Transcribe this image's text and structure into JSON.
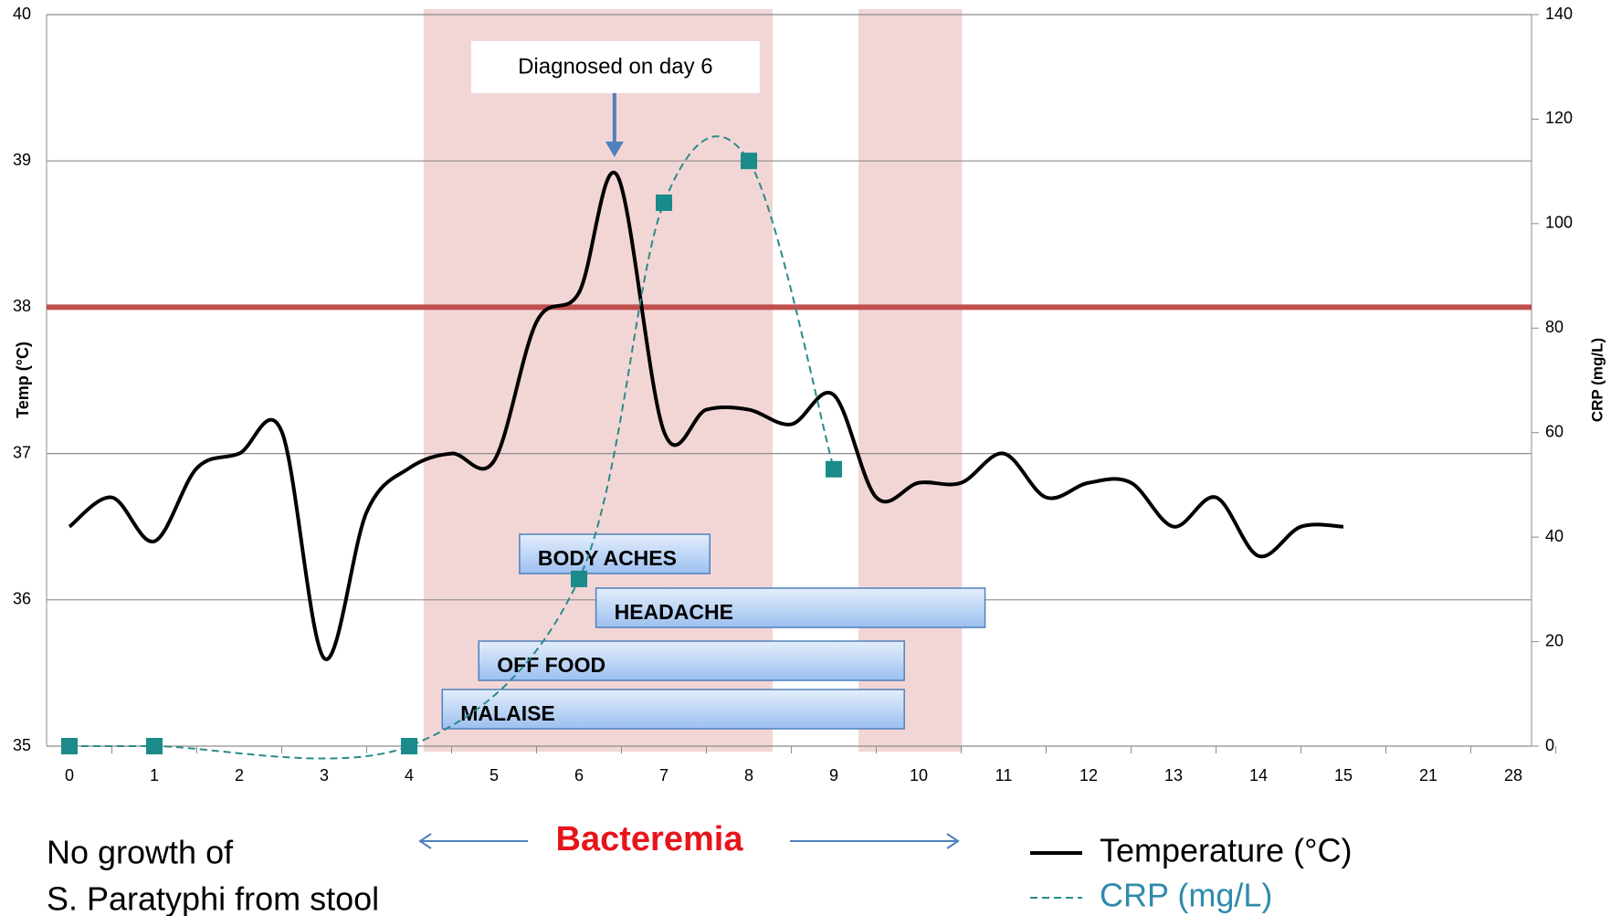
{
  "chart_data": {
    "type": "line",
    "categories": [
      "0",
      "1",
      "2",
      "3",
      "4",
      "5",
      "6",
      "7",
      "8",
      "9",
      "10",
      "11",
      "12",
      "13",
      "14",
      "15",
      "21",
      "28"
    ],
    "ylabel": "Temp (°C)",
    "y2label": "CRP (mg/L)",
    "ylim": [
      35,
      40
    ],
    "yticks": [
      35,
      36,
      37,
      38,
      39,
      40
    ],
    "y2lim": [
      0,
      140
    ],
    "y2ticks": [
      0,
      20,
      40,
      60,
      80,
      100,
      120,
      140
    ],
    "grid": true,
    "threshold": 38,
    "threshold_color": "#c0504d",
    "shaded": [
      {
        "from": 4.17,
        "to": 8.28
      },
      {
        "from": 9.29,
        "to": 10.51
      }
    ],
    "series": [
      {
        "name": "Temperature (°C)",
        "color": "#000000",
        "x": [
          0,
          0.5,
          1,
          1.5,
          2,
          2.5,
          3,
          3.5,
          4,
          4.5,
          5,
          5.5,
          6,
          6.45,
          7,
          7.5,
          8,
          8.5,
          9,
          9.5,
          10,
          10.5,
          11,
          11.5,
          12,
          12.5,
          13,
          13.5,
          14,
          14.5,
          15
        ],
        "values": [
          36.5,
          36.7,
          36.4,
          36.9,
          37.0,
          37.15,
          35.6,
          36.6,
          36.9,
          37.0,
          36.95,
          37.9,
          38.1,
          38.9,
          37.15,
          37.3,
          37.3,
          37.2,
          37.4,
          36.7,
          36.8,
          36.8,
          37.0,
          36.7,
          36.8,
          36.8,
          36.5,
          36.7,
          36.3,
          36.5,
          36.5
        ]
      },
      {
        "name": "CRP (mg/L)",
        "color": "#2a8a8a",
        "axis": "y2",
        "x": [
          0,
          1,
          4,
          6,
          7,
          8,
          9
        ],
        "values": [
          0,
          0,
          0,
          32,
          104,
          112,
          53
        ]
      }
    ],
    "symptoms": [
      {
        "label": "BODY ACHES",
        "start": 5.3,
        "end": 7.54
      },
      {
        "label": "HEADACHE",
        "start": 6.2,
        "end": 10.78
      },
      {
        "label": "OFF FOOD",
        "start": 4.82,
        "end": 9.83
      },
      {
        "label": "MALAISE",
        "start": 4.39,
        "end": 9.83
      }
    ],
    "annotation": {
      "text": "Diagnosed on day 6",
      "x": 6.45
    },
    "period_label": "Bacteremia",
    "note": [
      "No growth of",
      "S. Paratyphi from stool"
    ]
  }
}
